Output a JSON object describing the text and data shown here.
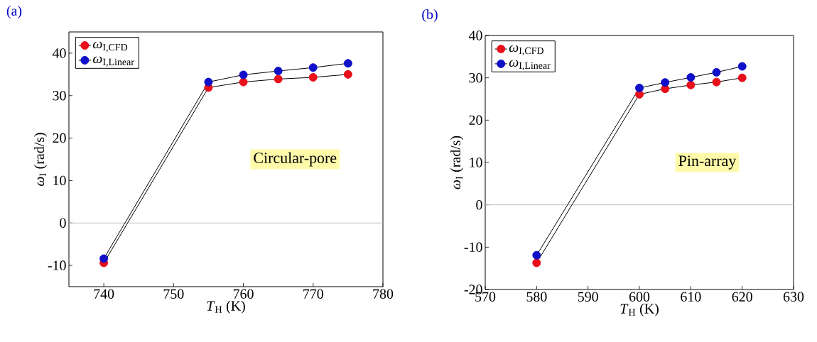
{
  "chart_data": [
    {
      "type": "line",
      "title": "(a)",
      "xlabel": "*T*$_{H}$ (K)",
      "ylabel": "*ω*$_{I}$ (rad/s)",
      "x": [
        740,
        755,
        760,
        765,
        770,
        775
      ],
      "series": [
        {
          "name": "*ω*$_{I,CFD}$",
          "color": "#e8101a",
          "values": [
            -9.4,
            31.9,
            33.2,
            33.9,
            34.3,
            35.0
          ]
        },
        {
          "name": "*ω*$_{I,Linear}$",
          "color": "#1010c8",
          "values": [
            -8.4,
            33.2,
            34.9,
            35.8,
            36.6,
            37.6
          ]
        }
      ],
      "xlim": [
        735,
        780
      ],
      "xticks": [
        740,
        750,
        760,
        770,
        780
      ],
      "ylim": [
        -15,
        45
      ],
      "yticks": [
        -10,
        0,
        10,
        20,
        30,
        40
      ],
      "ref_lines": [
        {
          "axis": "y",
          "value": 0,
          "color": "#bebebe"
        }
      ],
      "annotations": [
        "Circular-pore"
      ],
      "legend": "top left",
      "marker": "circle",
      "line_style": "solid"
    },
    {
      "type": "line",
      "title": "(b)",
      "xlabel": "*T*$_{H}$ (K)",
      "ylabel": "*ω*$_{I}$ (rad/s)",
      "x": [
        580,
        600,
        605,
        610,
        615,
        620
      ],
      "series": [
        {
          "name": "*ω*$_{I,CFD}$",
          "color": "#e8101a",
          "values": [
            -13.7,
            26.1,
            27.4,
            28.3,
            29.0,
            30.0
          ]
        },
        {
          "name": "*ω*$_{I,Linear}$",
          "color": "#1010c8",
          "values": [
            -11.9,
            27.6,
            28.9,
            30.1,
            31.3,
            32.7
          ]
        }
      ],
      "xlim": [
        570,
        630
      ],
      "xticks": [
        570,
        580,
        590,
        600,
        610,
        620,
        630
      ],
      "ylim": [
        -20,
        40
      ],
      "yticks": [
        -20,
        -10,
        0,
        10,
        20,
        30,
        40
      ],
      "ref_lines": [
        {
          "axis": "y",
          "value": 0,
          "color": "#bebebe"
        }
      ],
      "annotations": [
        "Pin-array"
      ],
      "legend": "top left",
      "marker": "circle",
      "line_style": "solid"
    }
  ]
}
